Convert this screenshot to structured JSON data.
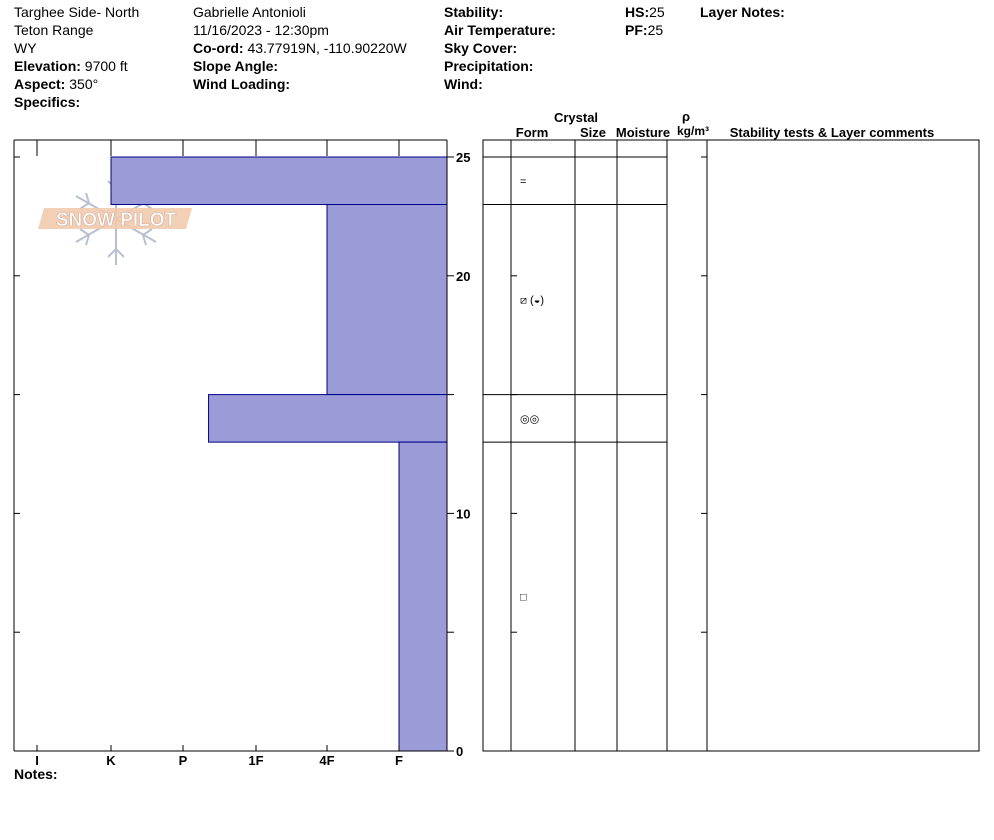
{
  "header": {
    "location": "Targhee Side- North",
    "range": "Teton Range",
    "state": "WY",
    "elevation_label": "Elevation:",
    "elevation": "9700 ft",
    "aspect_label": "Aspect:",
    "aspect": "350°",
    "specifics_label": "Specifics:",
    "observer": "Gabrielle Antonioli",
    "datetime": "11/16/2023 - 12:30pm",
    "coord_label": "Co-ord:",
    "coord": "43.77919N, -110.90220W",
    "slope_label": "Slope Angle:",
    "wind_loading_label": "Wind Loading:",
    "stability_label": "Stability:",
    "air_temp_label": "Air Temperature:",
    "sky_label": "Sky Cover:",
    "precip_label": "Precipitation:",
    "wind_label": "Wind:",
    "hs_label": "HS:",
    "hs": "25",
    "pf_label": "PF:",
    "pf": "25",
    "layer_notes_label": "Layer Notes:"
  },
  "table_headers": {
    "crystal": "Crystal",
    "form": "Form",
    "size": "Size",
    "moisture": "Moisture",
    "rho": "ρ",
    "density_unit": "kg/m³",
    "comments": "Stability tests & Layer comments"
  },
  "notes_label": "Notes:",
  "logo_text": "SNOW PILOT",
  "colors": {
    "layer_fill": "#9b9bd7",
    "layer_stroke": "#00008b"
  },
  "chart_data": {
    "type": "bar",
    "orientation": "horizontal-step",
    "hardness_scale": [
      "I",
      "K",
      "P",
      "1F",
      "4F",
      "F"
    ],
    "hardness_ticks_left_to_right": [
      "I",
      "K",
      "P",
      "1F",
      "4F",
      "F"
    ],
    "y_ticks": [
      0,
      10,
      20,
      25
    ],
    "ylim": [
      0,
      25
    ],
    "layers": [
      {
        "bottom": 23,
        "top": 25,
        "hardness": "K",
        "form": "="
      },
      {
        "bottom": 15,
        "top": 23,
        "hardness": "4F",
        "form": "⧄ (◒)"
      },
      {
        "bottom": 13,
        "top": 15,
        "hardness": "P-1F",
        "hardness_value": 2.35,
        "form": "◎◎"
      },
      {
        "bottom": 0,
        "top": 13,
        "hardness": "F",
        "form": "□"
      }
    ]
  }
}
